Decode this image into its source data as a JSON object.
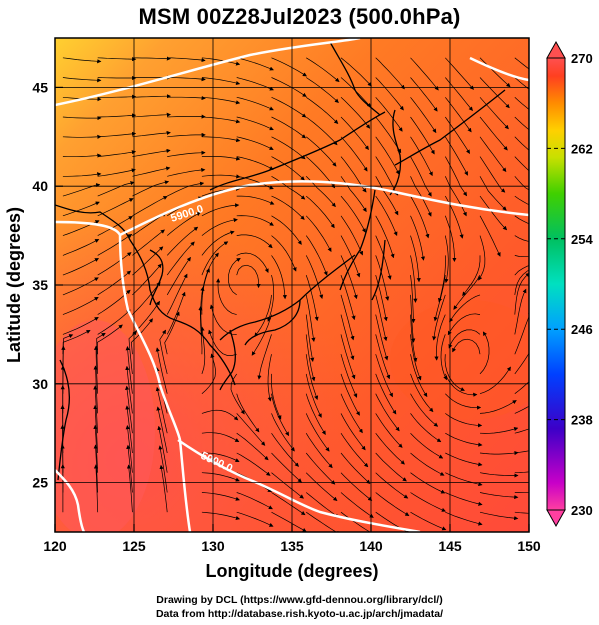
{
  "title": "MSM 00Z28Jul2023 (500.0hPa)",
  "xaxis": {
    "label": "Longitude (degrees)",
    "ticks": [
      "120",
      "125",
      "130",
      "135",
      "140",
      "145",
      "150"
    ],
    "range": [
      120,
      150
    ]
  },
  "yaxis": {
    "label": "Latitude  (degrees)",
    "ticks": [
      "25",
      "30",
      "35",
      "40",
      "45"
    ],
    "range": [
      22.5,
      47.5
    ]
  },
  "colorbar": {
    "ticks": [
      "270",
      "262",
      "254",
      "246",
      "238",
      "230"
    ],
    "range": [
      230,
      270
    ],
    "colors": [
      "#ff3fa0",
      "#c800c8",
      "#3c00c8",
      "#0040ff",
      "#00a0ff",
      "#00e0c0",
      "#00c060",
      "#40d000",
      "#c8e000",
      "#ffd000",
      "#ff8c00",
      "#ff4020",
      "#ff5050"
    ]
  },
  "field_colors": {
    "deep_red": "#ff4a3a",
    "red": "#ff5a2a",
    "orange": "#ff8a22",
    "light_orange": "#ffa030",
    "yellow": "#ffd030"
  },
  "contours": [
    {
      "label": "5900.0",
      "color": "#ffffff"
    },
    {
      "label": "5900.0",
      "color": "#ffffff"
    }
  ],
  "credits": [
    "Drawing by DCL (https://www.gfd-dennou.org/library/dcl/)",
    "Data from http://database.rish.kyoto-u.ac.jp/arch/jmadata/"
  ]
}
